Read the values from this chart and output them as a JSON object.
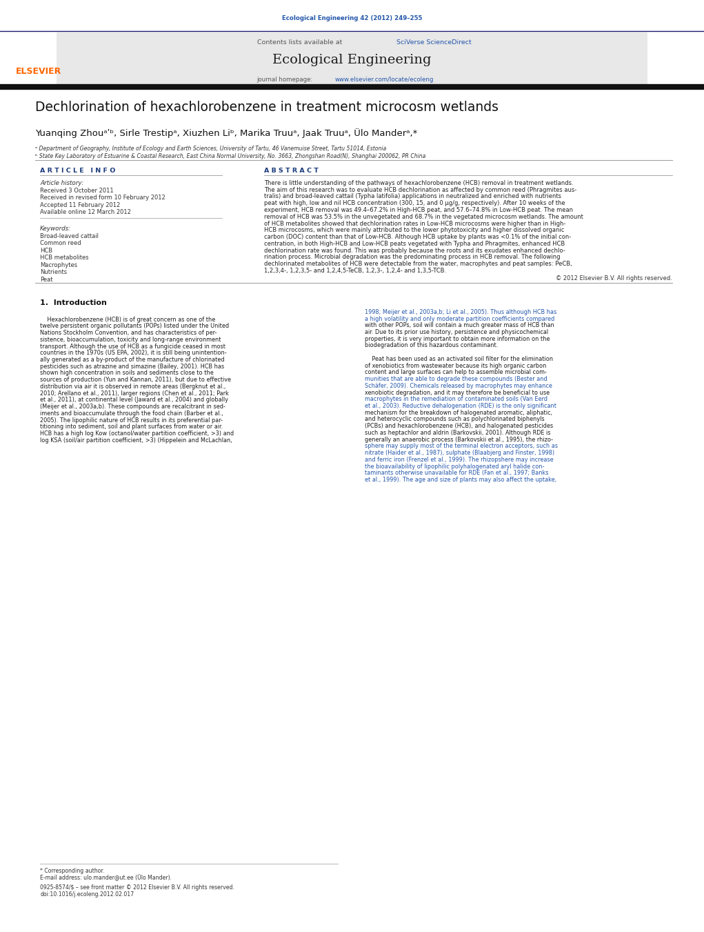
{
  "page_width": 10.21,
  "page_height": 13.51,
  "background_color": "#ffffff",
  "journal_ref_color": "#2255aa",
  "journal_ref_text": "Ecological Engineering 42 (2012) 249–255",
  "header_bar_color": "#1a1a6e",
  "header_bg_color": "#e8e8e8",
  "elsevier_color": "#ff6600",
  "sciverse_color": "#2255aa",
  "url_color": "#2255aa",
  "paper_title": "Dechlorination of hexachlorobenzene in treatment microcosm wetlands",
  "authors_line": "Yuanqing Zhouᵃʹᵇ, Sirle Trestipᵃ, Xiuzhen Liᵇ, Marika Truuᵃ, Jaak Truuᵃ, Ülo Manderᵃ,*",
  "affil_a": "ᵃ Department of Geography, Institute of Ecology and Earth Sciences, University of Tartu, 46 Vanemuise Street, Tartu 51014, Estonia",
  "affil_b": "ᵇ State Key Laboratory of Estuarine & Coastal Research, East China Normal University, No. 3663, Zhongshan Road(N), Shanghai 200062, PR China",
  "article_info_header": "A R T I C L E   I N F O",
  "abstract_header": "A B S T R A C T",
  "article_history_label": "Article history:",
  "received1": "Received 3 October 2011",
  "received2": "Received in revised form 10 February 2012",
  "accepted": "Accepted 11 February 2012",
  "available": "Available online 12 March 2012",
  "keywords_label": "Keywords:",
  "keywords": [
    "Broad-leaved cattail",
    "Common reed",
    "HCB",
    "HCB metabolites",
    "Macrophytes",
    "Nutrients",
    "Peat"
  ],
  "abstract_lines": [
    "There is little understanding of the pathways of hexachlorobenzene (HCB) removal in treatment wetlands.",
    "The aim of this research was to evaluate HCB dechlorination as affected by common reed (Phragmites aus-",
    "tralis) and broad-leaved cattail (Typha latifolia) applications in neutralized and enriched with nutrients",
    "peat with high, low and nil HCB concentration (300, 15, and 0 μg/g, respectively). After 10 weeks of the",
    "experiment, HCB removal was 49.4–67.2% in High-HCB peat, and 57.6–74.8% in Low-HCB peat. The mean",
    "removal of HCB was 53.5% in the unvegetated and 68.7% in the vegetated microcosm wetlands. The amount",
    "of HCB metabolites showed that dechlorination rates in Low-HCB microcosms were higher than in High-",
    "HCB microcosms, which were mainly attributed to the lower phytotoxicity and higher dissolved organic",
    "carbon (DOC) content than that of Low-HCB. Although HCB uptake by plants was <0.1% of the initial con-",
    "centration, in both High-HCB and Low-HCB peats vegetated with Typha and Phragmites, enhanced HCB",
    "dechlorination rate was found. This was probably because the roots and its exudates enhanced dechlo-",
    "rination process. Microbial degradation was the predominating process in HCB removal. The following",
    "dechlorinated metabolites of HCB were detectable from the water, macrophytes and peat samples: PeCB,",
    "1,2,3,4-, 1,2,3,5- and 1,2,4,5-TeCB, 1,2,3-, 1,2,4- and 1,3,5-TCB."
  ],
  "copyright": "© 2012 Elsevier B.V. All rights reserved.",
  "section1_title": "1.  Introduction",
  "intro_col1_lines": [
    "    Hexachlorobenzene (HCB) is of great concern as one of the",
    "twelve persistent organic pollutants (POPs) listed under the United",
    "Nations Stockholm Convention, and has characteristics of per-",
    "sistence, bioaccumulation, toxicity and long-range environment",
    "transport. Although the use of HCB as a fungicide ceased in most",
    "countries in the 1970s (US EPA, 2002), it is still being unintention-",
    "ally generated as a by-product of the manufacture of chlorinated",
    "pesticides such as atrazine and simazine (Bailey, 2001). HCB has",
    "shown high concentration in soils and sediments close to the",
    "sources of production (Yun and Kannan, 2011), but due to effective",
    "distribution via air it is observed in remote areas (Bergknut et al.,",
    "2010; Arellano et al., 2011), larger regions (Chen et al., 2011; Park",
    "et al., 2011), at continental level (Jaward et al., 2004) and globally",
    "(Meijer et al., 2003a,b). These compounds are recalcitrant in sed-",
    "iments and bioaccumulate through the food chain (Barber et al.,",
    "2005). The lipophilic nature of HCB results in its preferential par-",
    "titioning into sediment, soil and plant surfaces from water or air.",
    "HCB has a high log Kow (octanol/water partition coefficient, >3) and",
    "log KSA (soil/air partition coefficient, >3) (Hippelein and McLachlan,"
  ],
  "intro_col2_lines": [
    "1998; Meijer et al., 2003a,b; Li et al., 2005). Thus although HCB has",
    "a high volatility and only moderate partition coefficients compared",
    "with other POPs, soil will contain a much greater mass of HCB than",
    "air. Due to its prior use history, persistence and physicochemical",
    "properties, it is very important to obtain more information on the",
    "biodegradation of this hazardous contaminant.",
    "",
    "    Peat has been used as an activated soil filter for the elimination",
    "of xenobiotics from wastewater because its high organic carbon",
    "content and large surfaces can help to assemble microbial com-",
    "munities that are able to degrade these compounds (Bester and",
    "Schäfer, 2009). Chemicals released by macrophytes may enhance",
    "xenobiotic degradation, and it may therefore be beneficial to use",
    "macrophytes in the remediation of contaminated soils (Van Eerd",
    "et al., 2003). Reductive dehalogenation (RDE) is the only significant",
    "mechanism for the breakdown of halogenated aromatic, aliphatic,",
    "and heterocyclic compounds such as polychlorinated biphenyls",
    "(PCBs) and hexachlorobenzene (HCB), and halogenated pesticides",
    "such as heptachlor and aldrin (Barkovskii, 2001). Although RDE is",
    "generally an anaerobic process (Barkovskii et al., 1995), the rhizo-",
    "sphere may supply most of the terminal electron acceptors, such as",
    "nitrate (Haider et al., 1987), sulphate (Blaabjerg and Finster, 1998)",
    "and ferric iron (Frenzel et al., 1999). The rhizopshere may increase",
    "the bioavailability of lipophilic polyhalogenated aryl halide con-",
    "taminants otherwise unavailable for RDE (Fan et al., 1997; Banks",
    "et al., 1999). The age and size of plants may also affect the uptake,"
  ],
  "intro_col2_link_lines": [
    0,
    1,
    10,
    11,
    13,
    14,
    20,
    21,
    22,
    23,
    24,
    25
  ],
  "footer_note": "* Corresponding author.",
  "footer_email": "E-mail address: ulo.mander@ut.ee (Ülo Mander).",
  "footer_issn": "0925-8574/$ – see front matter © 2012 Elsevier B.V. All rights reserved.",
  "footer_doi": "doi:10.1016/j.ecoleng.2012.02.017"
}
